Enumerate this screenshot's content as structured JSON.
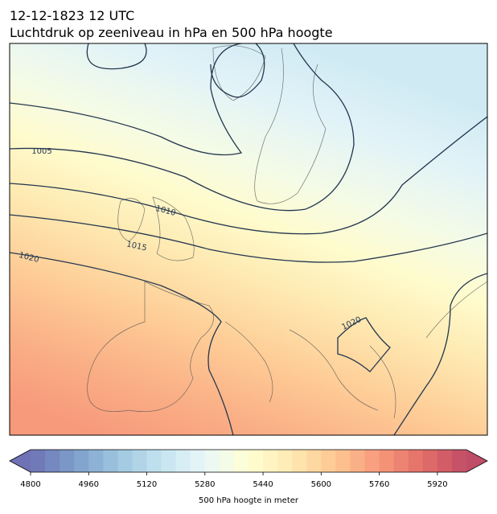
{
  "title": "12-12-1823 12 UTC",
  "subtitle": "Luchtdruk op zeeniveau in hPa en 500 hPa hoogte",
  "contour_labels": [
    "1005",
    "1010",
    "1015",
    "1020",
    "1020"
  ],
  "colorbar": {
    "label": "500 hPa hoogte in meter",
    "lim": [
      4800,
      6000
    ],
    "ticks": [
      4800,
      4960,
      5120,
      5280,
      5440,
      5600,
      5760,
      5920
    ]
  }
}
